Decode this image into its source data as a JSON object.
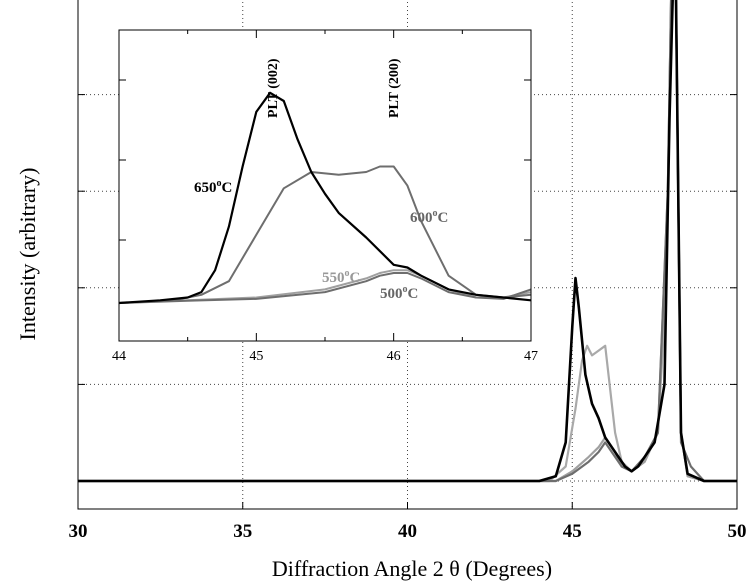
{
  "chart_data": [
    {
      "type": "line",
      "xlabel": "Diffraction Angle 2 θ  (Degrees)",
      "ylabel": "Intensity (arbitrary)",
      "xlim": [
        30,
        50
      ],
      "xticks": [
        30,
        35,
        40,
        45,
        50
      ],
      "ylim": [
        0,
        100
      ],
      "yticks": [
        0,
        20,
        40,
        60,
        80
      ],
      "grid": true,
      "series": [
        {
          "name": "650°C",
          "color": "#000000",
          "x": [
            30,
            44.0,
            44.5,
            44.8,
            45.0,
            45.1,
            45.2,
            45.4,
            45.6,
            45.8,
            46.0,
            46.2,
            46.4,
            46.6,
            46.8,
            47.0,
            47.2,
            47.5,
            47.8,
            47.95,
            48.05,
            48.15,
            48.3,
            48.5,
            49.0,
            50
          ],
          "y": [
            0,
            0,
            1,
            8,
            32,
            42,
            36,
            22,
            16,
            13,
            9,
            7,
            5,
            3,
            2,
            3,
            5,
            8,
            20,
            75,
            100,
            100,
            10,
            1.5,
            0,
            0
          ]
        },
        {
          "name": "600°C",
          "color": "#a9a9a9",
          "x": [
            30,
            44.3,
            44.8,
            45.1,
            45.3,
            45.45,
            45.6,
            45.8,
            46.0,
            46.1,
            46.3,
            46.5,
            46.8,
            47.2,
            47.6,
            47.85,
            48.0,
            48.15,
            48.3,
            48.5,
            49.0,
            50
          ],
          "y": [
            0,
            0,
            3,
            15,
            25,
            28,
            26,
            27,
            28,
            22,
            10,
            4,
            2,
            4,
            10,
            40,
            100,
            100,
            10,
            1,
            0,
            0
          ]
        },
        {
          "name": "550°C",
          "color": "#a0a0a0",
          "x": [
            30,
            44.5,
            45.0,
            45.5,
            45.8,
            46.0,
            46.1,
            46.3,
            46.5,
            46.8,
            47.2,
            47.6,
            47.9,
            48.0,
            48.15,
            48.3,
            48.5,
            49.0,
            50
          ],
          "y": [
            0,
            0,
            2,
            5,
            7,
            9,
            8,
            6,
            3,
            2,
            4,
            10,
            60,
            100,
            100,
            10,
            1,
            0,
            0
          ]
        },
        {
          "name": "500°C",
          "color": "#6e6e6e",
          "x": [
            30,
            44.5,
            45.0,
            45.5,
            45.8,
            46.0,
            46.1,
            46.3,
            46.5,
            46.8,
            47.2,
            47.6,
            47.9,
            48.0,
            48.15,
            48.3,
            48.6,
            49.0,
            50
          ],
          "y": [
            0,
            0,
            1.5,
            4,
            6,
            8,
            7,
            5,
            3,
            2,
            5,
            10,
            60,
            100,
            100,
            8,
            3,
            0,
            0
          ]
        }
      ]
    },
    {
      "type": "line",
      "xlim": [
        44,
        47
      ],
      "xticks": [
        44,
        45,
        46,
        47
      ],
      "ylim": [
        0,
        100
      ],
      "yticks": [
        33,
        66
      ],
      "grid": false,
      "annotations": [
        "PLT (002)",
        "PLT (200)"
      ],
      "series": [
        {
          "name": "650°C",
          "color": "#000000",
          "label": "650",
          "x": [
            44.0,
            44.3,
            44.5,
            44.6,
            44.7,
            44.8,
            44.9,
            45.0,
            45.1,
            45.2,
            45.3,
            45.4,
            45.5,
            45.6,
            45.8,
            46.0,
            46.1,
            46.2,
            46.4,
            46.6,
            46.8,
            47.0
          ],
          "y": [
            0,
            1,
            2,
            4,
            12,
            28,
            50,
            70,
            77,
            74,
            60,
            48,
            40,
            33,
            24,
            14,
            13,
            10,
            5,
            3,
            2,
            1
          ]
        },
        {
          "name": "600°C",
          "color": "#6e6e6e",
          "label": "600",
          "x": [
            44.0,
            44.4,
            44.6,
            44.8,
            45.0,
            45.2,
            45.4,
            45.6,
            45.8,
            45.9,
            46.0,
            46.1,
            46.2,
            46.4,
            46.6,
            46.8,
            47.0
          ],
          "y": [
            0,
            1,
            3,
            8,
            25,
            42,
            48,
            47,
            48,
            50,
            50,
            43,
            30,
            10,
            3,
            2,
            3
          ]
        },
        {
          "name": "550°C",
          "color": "#a0a0a0",
          "label": "550",
          "x": [
            44.0,
            44.5,
            45.0,
            45.5,
            45.8,
            45.9,
            46.0,
            46.1,
            46.2,
            46.4,
            46.6,
            46.8,
            47.0
          ],
          "y": [
            0,
            1,
            2,
            5,
            9,
            11,
            12,
            12,
            10,
            5,
            2,
            2,
            4
          ]
        },
        {
          "name": "500°C",
          "color": "#6e6e6e",
          "label": "500",
          "x": [
            44.0,
            44.5,
            45.0,
            45.5,
            45.8,
            45.9,
            46.0,
            46.1,
            46.2,
            46.4,
            46.6,
            46.8,
            47.0
          ],
          "y": [
            0,
            0.8,
            1.5,
            4,
            8,
            10,
            11,
            11,
            9,
            4,
            2,
            1.5,
            5
          ]
        }
      ]
    }
  ]
}
